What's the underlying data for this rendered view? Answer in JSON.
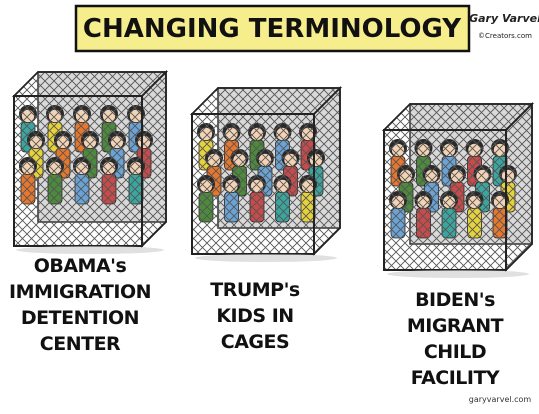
{
  "header": {
    "title": "CHANGING TERMINOLOGY",
    "signature": "Gary Varvel",
    "signature_credit": "©Creators.com"
  },
  "panels": [
    {
      "caption_lines": [
        "OBAMA's",
        "IMMIGRATION",
        "DETENTION",
        "CENTER"
      ]
    },
    {
      "caption_lines": [
        "TRUMP's",
        "KIDS IN",
        "CAGES"
      ]
    },
    {
      "caption_lines": [
        "BIDEN's",
        "MIGRANT",
        "CHILD",
        "FACILITY"
      ]
    }
  ],
  "footer": {
    "credit": "garyvarvel.com"
  }
}
